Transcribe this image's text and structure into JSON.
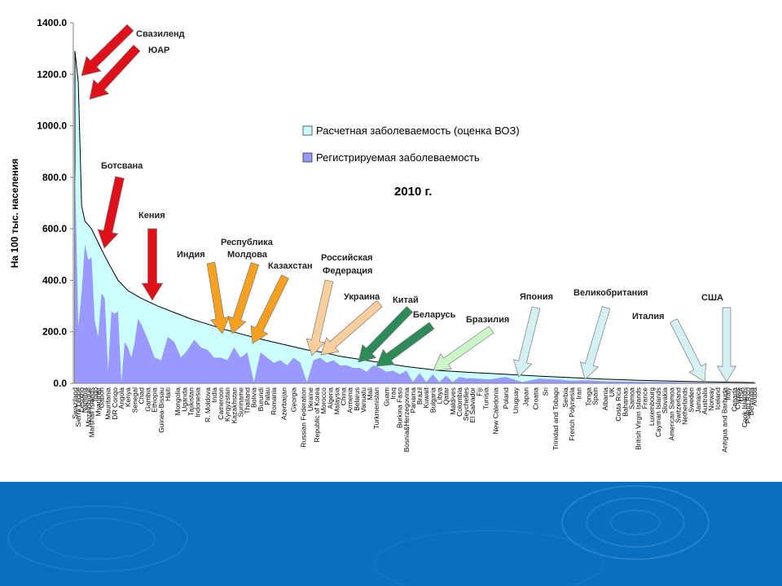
{
  "colors": {
    "estimated_fill": "#ccffff",
    "registered_fill": "#9999ff",
    "arrow_red": "#e0101a",
    "arrow_orange": "#f5a020",
    "arrow_peach": "#f8cf9c",
    "arrow_green": "#2e8b57",
    "arrow_lightgreen": "#ccf5c8",
    "arrow_lightblue": "#d4f0f2",
    "footer_band": "#0a6fc0"
  },
  "chart_data": {
    "type": "area",
    "year_label": "2010 г.",
    "ylabel": "На 100 тыс. населения",
    "ylim": [
      0,
      1400
    ],
    "yticks": [
      "0.0",
      "200.0",
      "400.0",
      "600.0",
      "800.0",
      "1000.0",
      "1200.0",
      "1400.0"
    ],
    "legend": [
      {
        "label": "Расчетная заболеваемость (оценка ВОЗ)",
        "color_key": "estimated_fill"
      },
      {
        "label": "Регистрируемая заболеваемость",
        "color_key": "registered_fill"
      }
    ],
    "legend_position": "top-right",
    "x_labels": [
      "Swaziland",
      "Sierra Leone",
      "Lesotho",
      "Namibia",
      "Mozambique",
      "Marshall Islands",
      "Togo",
      "Myanmar",
      "Gabon",
      "Mauritania",
      "DR Congo",
      "Angola",
      "Kenya",
      "Senegal",
      "Chad",
      "Gambia",
      "Ethiopia",
      "Guinea-Bissau",
      "Haiti",
      "Mongolia",
      "Uganda",
      "Tajikistan",
      "Indonesia",
      "R. Moldova",
      "India",
      "Cameroon",
      "Kyrgyzstan",
      "Kazakhstan",
      "Suriname",
      "Thailand",
      "Bolivia",
      "Burundi",
      "Palau",
      "Romania",
      "Azerbaijan",
      "Georgia",
      "Russian Federation",
      "Ukraine",
      "Republic of Korea",
      "Morocco",
      "Algeria",
      "Malaysia",
      "China",
      "Armenia",
      "Belarus",
      "Vanuatu",
      "Mali",
      "Turkmenistan",
      "Guam",
      "Iraq",
      "Burkina Faso",
      "Bosnia&Herzegovina",
      "Panama",
      "Brazil",
      "Kuwait",
      "Bulgaria",
      "Libya",
      "Qatar",
      "Maldives",
      "Colombia",
      "Seychelles",
      "El Salvador",
      "Fiji",
      "Tunisia",
      "New Caledonia",
      "Poland",
      "Uruguay",
      "Japan",
      "Croatia",
      "Sri",
      "Trinidad and Tobago",
      "Serbia",
      "French Polynesia",
      "Iran",
      "Tonga",
      "Spain",
      "Albania",
      "UK",
      "Costa Rica",
      "Bahamas",
      "Samoa",
      "British Virgin Islands",
      "France",
      "Luxembourg",
      "Cayman Islands",
      "Slovakia",
      "American Samoa",
      "Switzerland",
      "Netherlands",
      "Sweden",
      "Jamaica",
      "Australia",
      "Norway",
      "Iceland",
      "Antigua and Barbuda",
      "Italy",
      "Canada",
      "Cyprus",
      "USA",
      "Cook Islands",
      "Puerto Rico",
      "Bermuda",
      "Aruba"
    ],
    "x_label_slots": [
      0,
      1,
      2,
      3,
      4,
      5,
      6,
      7,
      8,
      10,
      12,
      14,
      16,
      18,
      20,
      22,
      24,
      26,
      28,
      31,
      33,
      35,
      37,
      40,
      42,
      44,
      46,
      48,
      50,
      52,
      54,
      56,
      58,
      60,
      63,
      66,
      69,
      71,
      73,
      75,
      77,
      79,
      81,
      83,
      85,
      87,
      89,
      91,
      94,
      96,
      98,
      100,
      102,
      104,
      106,
      108,
      110,
      112,
      114,
      116,
      118,
      120,
      122,
      124,
      127,
      130,
      133,
      136,
      139,
      142,
      145,
      148,
      150,
      152,
      155,
      157,
      160,
      162,
      164,
      166,
      168,
      170,
      172,
      174,
      176,
      178,
      180,
      182,
      184,
      186,
      188,
      190,
      192,
      194,
      196,
      197,
      199,
      200,
      201,
      202,
      203,
      204,
      205
    ],
    "slot_count": 206,
    "series": [
      {
        "name": "Расчетная заболеваемость (оценка ВОЗ)",
        "x": [
          0,
          1,
          2,
          3,
          5,
          8,
          10,
          13,
          16,
          20,
          25,
          30,
          35,
          40,
          45,
          50,
          55,
          60,
          65,
          70,
          75,
          80,
          85,
          90,
          95,
          100,
          110,
          120,
          130,
          140,
          150,
          160,
          170,
          180,
          190,
          200,
          205
        ],
        "values": [
          1290,
          1170,
          690,
          630,
          600,
          520,
          470,
          400,
          360,
          330,
          300,
          275,
          250,
          230,
          210,
          192,
          175,
          160,
          145,
          130,
          120,
          105,
          95,
          85,
          75,
          65,
          50,
          42,
          35,
          28,
          22,
          16,
          12,
          9,
          6,
          4,
          3
        ]
      },
      {
        "name": "Регистрируемая заболеваемость",
        "x": [
          0,
          1,
          2,
          3,
          4,
          5,
          6,
          7,
          8,
          9,
          10,
          11,
          12,
          13,
          14,
          15,
          16,
          17,
          18,
          19,
          20,
          22,
          24,
          26,
          28,
          30,
          32,
          34,
          36,
          38,
          40,
          42,
          44,
          46,
          48,
          50,
          52,
          54,
          56,
          58,
          60,
          62,
          64,
          66,
          68,
          70,
          72,
          74,
          76,
          78,
          80,
          82,
          84,
          86,
          88,
          90,
          92,
          94,
          96,
          98,
          100,
          102,
          104,
          106,
          108,
          110,
          112,
          114,
          116,
          118,
          120,
          125,
          130,
          135,
          140,
          145,
          150,
          155,
          160,
          170,
          180,
          190,
          200,
          205
        ],
        "values": [
          850,
          220,
          350,
          540,
          480,
          490,
          240,
          180,
          350,
          330,
          50,
          280,
          270,
          280,
          5,
          160,
          140,
          100,
          160,
          250,
          230,
          170,
          100,
          90,
          180,
          160,
          100,
          130,
          170,
          140,
          130,
          100,
          100,
          90,
          140,
          100,
          120,
          5,
          120,
          100,
          80,
          90,
          70,
          100,
          80,
          5,
          90,
          100,
          80,
          90,
          70,
          70,
          60,
          60,
          45,
          70,
          60,
          45,
          50,
          35,
          50,
          5,
          40,
          5,
          35,
          5,
          30,
          5,
          25,
          20,
          20,
          15,
          25,
          5,
          18,
          15,
          10,
          12,
          8,
          6,
          5,
          3,
          2,
          1
        ]
      }
    ]
  },
  "annotations": [
    {
      "text": "Свазиленд",
      "color_key": "arrow_red"
    },
    {
      "text": "ЮАР",
      "color_key": "arrow_red"
    },
    {
      "text": "Ботсвана",
      "color_key": "arrow_red"
    },
    {
      "text": "Кения",
      "color_key": "arrow_red"
    },
    {
      "text": "Индия",
      "color_key": "arrow_orange"
    },
    {
      "text": "Республика",
      "color_key": "arrow_orange"
    },
    {
      "text": "Молдова",
      "color_key": "arrow_orange"
    },
    {
      "text": "Казахстан",
      "color_key": "arrow_orange"
    },
    {
      "text": "Российская",
      "color_key": "arrow_peach"
    },
    {
      "text": "Федерация",
      "color_key": "arrow_peach"
    },
    {
      "text": "Украина",
      "color_key": "arrow_peach"
    },
    {
      "text": "Китай",
      "color_key": "arrow_green"
    },
    {
      "text": "Беларусь",
      "color_key": "arrow_green"
    },
    {
      "text": "Бразилия",
      "color_key": "arrow_lightgreen"
    },
    {
      "text": "Япония",
      "color_key": "arrow_lightblue"
    },
    {
      "text": "Великобритания",
      "color_key": "arrow_lightblue"
    },
    {
      "text": "Италия",
      "color_key": "arrow_lightblue"
    },
    {
      "text": "США",
      "color_key": "arrow_lightblue"
    }
  ]
}
